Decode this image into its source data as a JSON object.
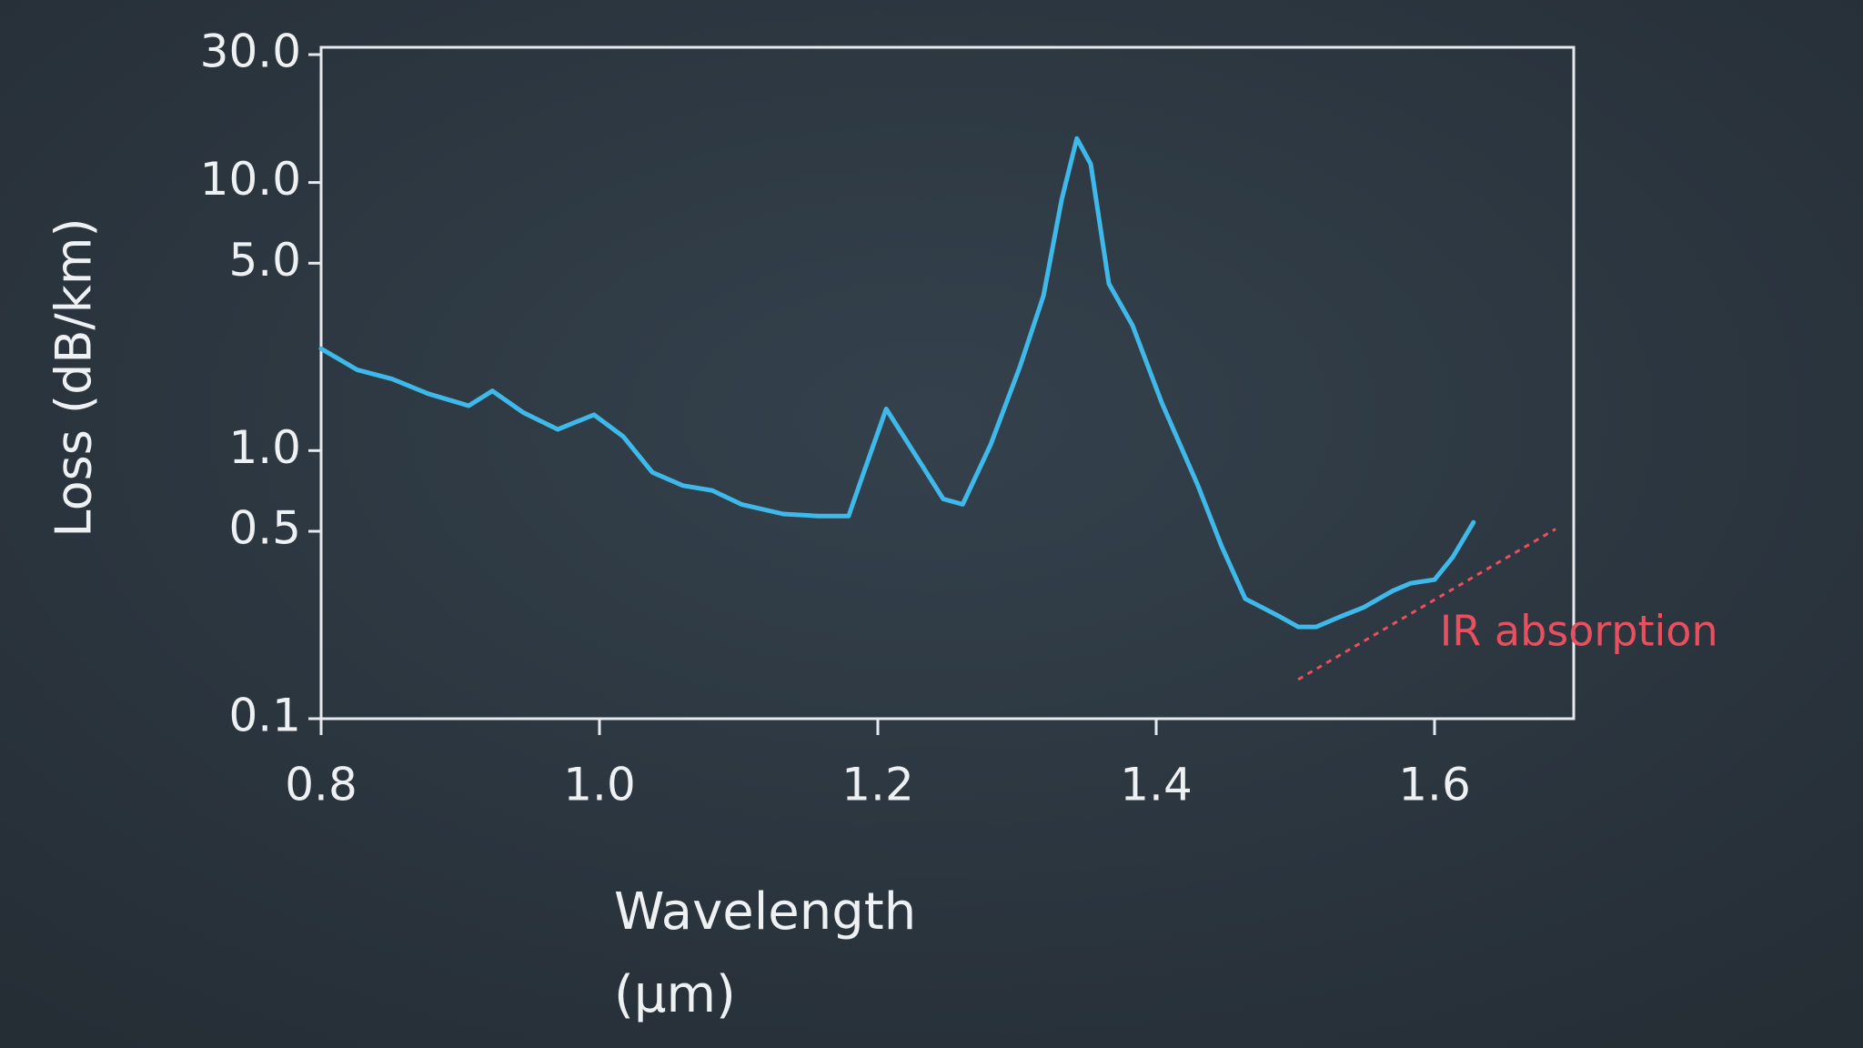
{
  "chart_data": {
    "type": "line",
    "ylabel": "Loss (dB/km)",
    "xlabel": [
      "Wavelength",
      "(μm)"
    ],
    "x": [
      0.8,
      0.826,
      0.851,
      0.877,
      0.906,
      0.923,
      0.945,
      0.97,
      0.996,
      1.017,
      1.038,
      1.06,
      1.081,
      1.102,
      1.132,
      1.157,
      1.179,
      1.191,
      1.206,
      1.225,
      1.247,
      1.261,
      1.281,
      1.302,
      1.319,
      1.332,
      1.343,
      1.353,
      1.366,
      1.383,
      1.404,
      1.43,
      1.447,
      1.464,
      1.489,
      1.502,
      1.515,
      1.532,
      1.549,
      1.57,
      1.583,
      1.6,
      1.613,
      1.628
    ],
    "values": [
      2.4,
      2.0,
      1.85,
      1.63,
      1.47,
      1.67,
      1.39,
      1.2,
      1.36,
      1.13,
      0.83,
      0.74,
      0.71,
      0.63,
      0.58,
      0.57,
      0.57,
      0.86,
      1.43,
      1.0,
      0.66,
      0.63,
      1.05,
      2.05,
      3.78,
      8.6,
      14.6,
      11.7,
      4.19,
      2.93,
      1.51,
      0.74,
      0.44,
      0.28,
      0.24,
      0.22,
      0.22,
      0.24,
      0.26,
      0.3,
      0.32,
      0.33,
      0.4,
      0.54
    ],
    "color": "#3fb9ea",
    "xlim": [
      0.8,
      1.7
    ],
    "ylim": [
      0.1,
      30
    ],
    "log_y": true,
    "xticks": [
      0.8,
      {
        "value": 1.0,
        "label": "1.0"
      },
      1.2,
      1.4,
      1.6
    ],
    "yticks": [
      0.1,
      0.5,
      {
        "value": 1,
        "label": "1.0"
      },
      {
        "value": 5,
        "label": "5.0"
      },
      {
        "value": 10,
        "label": "10.0"
      },
      {
        "value": 30,
        "label": "30.0"
      }
    ],
    "annotations": [
      {
        "text": "IR absorption",
        "x": [
          1.502,
          1.687
        ],
        "values": [
          0.14,
          0.51
        ],
        "color": "#e8505f"
      }
    ]
  }
}
